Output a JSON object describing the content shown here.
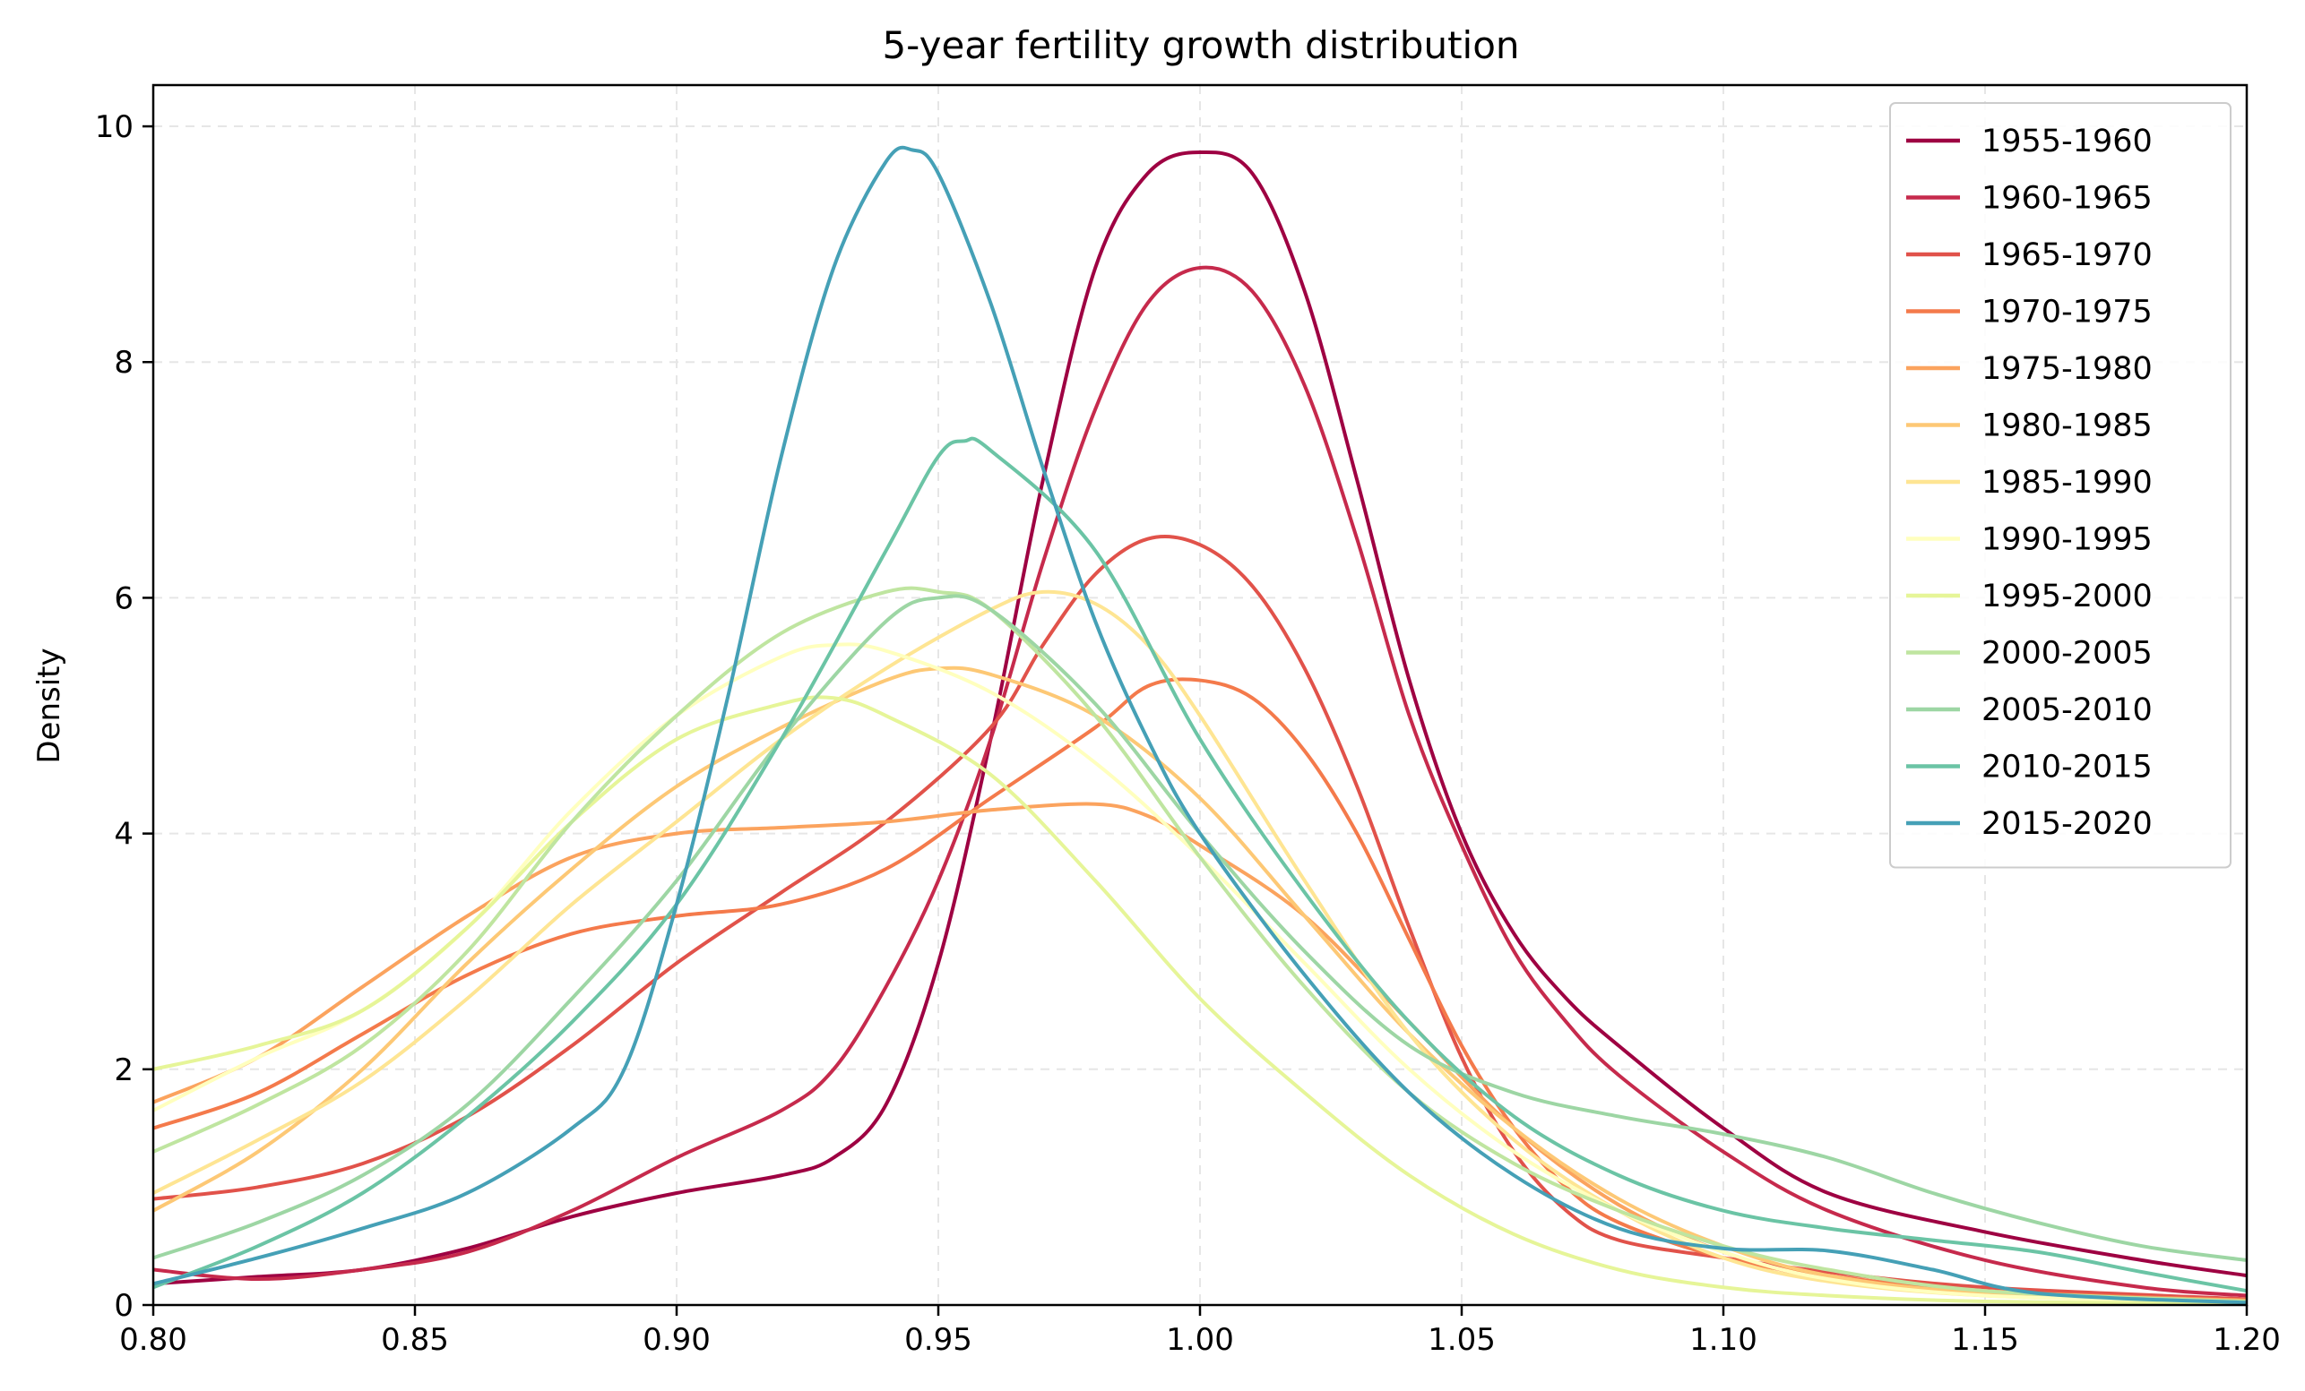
{
  "chart_data": {
    "type": "line",
    "title": "5-year fertility growth distribution",
    "xlabel": "",
    "ylabel": "Density",
    "xlim": [
      0.8,
      1.2
    ],
    "ylim": [
      0,
      10.35
    ],
    "x_ticks": [
      "0.80",
      "0.85",
      "0.90",
      "0.95",
      "1.00",
      "1.05",
      "1.10",
      "1.15",
      "1.20"
    ],
    "y_ticks": [
      "0",
      "2",
      "4",
      "6",
      "8",
      "10"
    ],
    "grid": true,
    "legend_position": "top-right",
    "series": [
      {
        "name": "1955-1960",
        "color": "#9e0142",
        "points": [
          [
            0.8,
            0.18
          ],
          [
            0.82,
            0.24
          ],
          [
            0.84,
            0.3
          ],
          [
            0.86,
            0.48
          ],
          [
            0.88,
            0.75
          ],
          [
            0.9,
            0.95
          ],
          [
            0.92,
            1.1
          ],
          [
            0.93,
            1.25
          ],
          [
            0.94,
            1.7
          ],
          [
            0.95,
            2.9
          ],
          [
            0.96,
            4.8
          ],
          [
            0.97,
            7.0
          ],
          [
            0.98,
            8.8
          ],
          [
            0.99,
            9.6
          ],
          [
            1.0,
            9.78
          ],
          [
            1.01,
            9.6
          ],
          [
            1.02,
            8.6
          ],
          [
            1.03,
            7.0
          ],
          [
            1.04,
            5.3
          ],
          [
            1.05,
            4.0
          ],
          [
            1.06,
            3.15
          ],
          [
            1.07,
            2.6
          ],
          [
            1.08,
            2.2
          ],
          [
            1.1,
            1.5
          ],
          [
            1.12,
            0.95
          ],
          [
            1.15,
            0.62
          ],
          [
            1.18,
            0.38
          ],
          [
            1.2,
            0.25
          ]
        ]
      },
      {
        "name": "1960-1965",
        "color": "#c62a4c",
        "points": [
          [
            0.8,
            0.3
          ],
          [
            0.82,
            0.22
          ],
          [
            0.84,
            0.3
          ],
          [
            0.86,
            0.45
          ],
          [
            0.88,
            0.8
          ],
          [
            0.9,
            1.25
          ],
          [
            0.92,
            1.65
          ],
          [
            0.93,
            2.0
          ],
          [
            0.94,
            2.7
          ],
          [
            0.95,
            3.6
          ],
          [
            0.96,
            4.8
          ],
          [
            0.97,
            6.3
          ],
          [
            0.98,
            7.6
          ],
          [
            0.99,
            8.5
          ],
          [
            1.0,
            8.8
          ],
          [
            1.01,
            8.6
          ],
          [
            1.02,
            7.8
          ],
          [
            1.03,
            6.5
          ],
          [
            1.04,
            5.0
          ],
          [
            1.05,
            3.9
          ],
          [
            1.06,
            3.0
          ],
          [
            1.07,
            2.4
          ],
          [
            1.08,
            1.95
          ],
          [
            1.1,
            1.3
          ],
          [
            1.12,
            0.8
          ],
          [
            1.15,
            0.38
          ],
          [
            1.18,
            0.15
          ],
          [
            1.2,
            0.08
          ]
        ]
      },
      {
        "name": "1965-1970",
        "color": "#e1524a",
        "points": [
          [
            0.8,
            0.9
          ],
          [
            0.82,
            1.0
          ],
          [
            0.84,
            1.2
          ],
          [
            0.86,
            1.6
          ],
          [
            0.88,
            2.2
          ],
          [
            0.9,
            2.9
          ],
          [
            0.92,
            3.5
          ],
          [
            0.94,
            4.1
          ],
          [
            0.96,
            4.9
          ],
          [
            0.97,
            5.6
          ],
          [
            0.98,
            6.2
          ],
          [
            0.99,
            6.5
          ],
          [
            1.0,
            6.45
          ],
          [
            1.01,
            6.1
          ],
          [
            1.02,
            5.4
          ],
          [
            1.03,
            4.4
          ],
          [
            1.04,
            3.2
          ],
          [
            1.05,
            2.1
          ],
          [
            1.06,
            1.3
          ],
          [
            1.07,
            0.8
          ],
          [
            1.08,
            0.55
          ],
          [
            1.1,
            0.4
          ],
          [
            1.12,
            0.28
          ],
          [
            1.15,
            0.15
          ],
          [
            1.2,
            0.05
          ]
        ]
      },
      {
        "name": "1970-1975",
        "color": "#f47a4b",
        "points": [
          [
            0.8,
            1.5
          ],
          [
            0.82,
            1.8
          ],
          [
            0.84,
            2.3
          ],
          [
            0.86,
            2.8
          ],
          [
            0.88,
            3.15
          ],
          [
            0.9,
            3.3
          ],
          [
            0.92,
            3.4
          ],
          [
            0.94,
            3.7
          ],
          [
            0.96,
            4.3
          ],
          [
            0.98,
            4.9
          ],
          [
            0.99,
            5.25
          ],
          [
            1.0,
            5.3
          ],
          [
            1.01,
            5.15
          ],
          [
            1.02,
            4.7
          ],
          [
            1.03,
            4.0
          ],
          [
            1.04,
            3.1
          ],
          [
            1.05,
            2.2
          ],
          [
            1.06,
            1.5
          ],
          [
            1.07,
            1.0
          ],
          [
            1.08,
            0.7
          ],
          [
            1.1,
            0.4
          ],
          [
            1.12,
            0.25
          ],
          [
            1.15,
            0.12
          ],
          [
            1.2,
            0.04
          ]
        ]
      },
      {
        "name": "1975-1980",
        "color": "#fba35e",
        "points": [
          [
            0.8,
            1.72
          ],
          [
            0.82,
            2.1
          ],
          [
            0.84,
            2.7
          ],
          [
            0.86,
            3.3
          ],
          [
            0.88,
            3.8
          ],
          [
            0.9,
            4.0
          ],
          [
            0.92,
            4.05
          ],
          [
            0.94,
            4.1
          ],
          [
            0.96,
            4.2
          ],
          [
            0.98,
            4.25
          ],
          [
            0.99,
            4.15
          ],
          [
            1.0,
            3.9
          ],
          [
            1.02,
            3.3
          ],
          [
            1.04,
            2.4
          ],
          [
            1.06,
            1.5
          ],
          [
            1.08,
            0.85
          ],
          [
            1.1,
            0.45
          ],
          [
            1.12,
            0.22
          ],
          [
            1.15,
            0.1
          ],
          [
            1.2,
            0.04
          ]
        ]
      },
      {
        "name": "1980-1985",
        "color": "#fdc875",
        "points": [
          [
            0.8,
            0.8
          ],
          [
            0.82,
            1.3
          ],
          [
            0.84,
            2.0
          ],
          [
            0.86,
            2.9
          ],
          [
            0.88,
            3.7
          ],
          [
            0.9,
            4.4
          ],
          [
            0.92,
            4.9
          ],
          [
            0.94,
            5.3
          ],
          [
            0.95,
            5.4
          ],
          [
            0.96,
            5.35
          ],
          [
            0.98,
            5.0
          ],
          [
            1.0,
            4.3
          ],
          [
            1.02,
            3.3
          ],
          [
            1.04,
            2.3
          ],
          [
            1.06,
            1.5
          ],
          [
            1.08,
            0.9
          ],
          [
            1.1,
            0.5
          ],
          [
            1.12,
            0.25
          ],
          [
            1.15,
            0.1
          ],
          [
            1.2,
            0.03
          ]
        ]
      },
      {
        "name": "1985-1990",
        "color": "#fee593",
        "points": [
          [
            0.8,
            0.95
          ],
          [
            0.82,
            1.4
          ],
          [
            0.84,
            1.9
          ],
          [
            0.86,
            2.6
          ],
          [
            0.88,
            3.4
          ],
          [
            0.9,
            4.1
          ],
          [
            0.92,
            4.8
          ],
          [
            0.94,
            5.4
          ],
          [
            0.96,
            5.9
          ],
          [
            0.97,
            6.05
          ],
          [
            0.98,
            5.95
          ],
          [
            0.99,
            5.6
          ],
          [
            1.0,
            5.0
          ],
          [
            1.02,
            3.6
          ],
          [
            1.04,
            2.3
          ],
          [
            1.06,
            1.4
          ],
          [
            1.08,
            0.8
          ],
          [
            1.1,
            0.4
          ],
          [
            1.12,
            0.2
          ],
          [
            1.15,
            0.08
          ],
          [
            1.2,
            0.02
          ]
        ]
      },
      {
        "name": "1990-1995",
        "color": "#ffffbe",
        "points": [
          [
            0.8,
            1.65
          ],
          [
            0.82,
            2.1
          ],
          [
            0.84,
            2.5
          ],
          [
            0.86,
            3.2
          ],
          [
            0.88,
            4.2
          ],
          [
            0.9,
            5.0
          ],
          [
            0.92,
            5.5
          ],
          [
            0.93,
            5.6
          ],
          [
            0.94,
            5.55
          ],
          [
            0.96,
            5.2
          ],
          [
            0.98,
            4.6
          ],
          [
            1.0,
            3.8
          ],
          [
            1.02,
            2.9
          ],
          [
            1.04,
            2.0
          ],
          [
            1.06,
            1.3
          ],
          [
            1.08,
            0.8
          ],
          [
            1.1,
            0.45
          ],
          [
            1.12,
            0.22
          ],
          [
            1.15,
            0.08
          ],
          [
            1.2,
            0.02
          ]
        ]
      },
      {
        "name": "1995-2000",
        "color": "#e6f598",
        "points": [
          [
            0.8,
            2.0
          ],
          [
            0.82,
            2.2
          ],
          [
            0.84,
            2.5
          ],
          [
            0.86,
            3.2
          ],
          [
            0.88,
            4.1
          ],
          [
            0.9,
            4.8
          ],
          [
            0.92,
            5.1
          ],
          [
            0.93,
            5.15
          ],
          [
            0.94,
            5.0
          ],
          [
            0.96,
            4.5
          ],
          [
            0.98,
            3.6
          ],
          [
            1.0,
            2.6
          ],
          [
            1.02,
            1.8
          ],
          [
            1.04,
            1.1
          ],
          [
            1.06,
            0.6
          ],
          [
            1.08,
            0.3
          ],
          [
            1.1,
            0.15
          ],
          [
            1.12,
            0.08
          ],
          [
            1.15,
            0.03
          ],
          [
            1.2,
            0.01
          ]
        ]
      },
      {
        "name": "2000-2005",
        "color": "#bfe5a0",
        "points": [
          [
            0.8,
            1.3
          ],
          [
            0.82,
            1.7
          ],
          [
            0.84,
            2.2
          ],
          [
            0.86,
            3.0
          ],
          [
            0.88,
            4.1
          ],
          [
            0.9,
            5.0
          ],
          [
            0.92,
            5.7
          ],
          [
            0.94,
            6.05
          ],
          [
            0.95,
            6.05
          ],
          [
            0.96,
            5.9
          ],
          [
            0.98,
            5.0
          ],
          [
            1.0,
            3.8
          ],
          [
            1.02,
            2.7
          ],
          [
            1.04,
            1.8
          ],
          [
            1.06,
            1.2
          ],
          [
            1.08,
            0.8
          ],
          [
            1.1,
            0.5
          ],
          [
            1.12,
            0.3
          ],
          [
            1.15,
            0.12
          ],
          [
            1.2,
            0.03
          ]
        ]
      },
      {
        "name": "2005-2010",
        "color": "#9dd6a4",
        "points": [
          [
            0.8,
            0.4
          ],
          [
            0.82,
            0.7
          ],
          [
            0.84,
            1.1
          ],
          [
            0.86,
            1.7
          ],
          [
            0.88,
            2.6
          ],
          [
            0.9,
            3.6
          ],
          [
            0.92,
            4.8
          ],
          [
            0.94,
            5.8
          ],
          [
            0.95,
            6.0
          ],
          [
            0.96,
            5.9
          ],
          [
            0.98,
            5.1
          ],
          [
            1.0,
            4.0
          ],
          [
            1.02,
            3.0
          ],
          [
            1.04,
            2.2
          ],
          [
            1.06,
            1.8
          ],
          [
            1.08,
            1.6
          ],
          [
            1.1,
            1.45
          ],
          [
            1.12,
            1.25
          ],
          [
            1.14,
            0.95
          ],
          [
            1.16,
            0.7
          ],
          [
            1.18,
            0.5
          ],
          [
            1.2,
            0.38
          ]
        ]
      },
      {
        "name": "2010-2015",
        "color": "#6bc4a5",
        "points": [
          [
            0.8,
            0.15
          ],
          [
            0.82,
            0.5
          ],
          [
            0.84,
            0.95
          ],
          [
            0.86,
            1.6
          ],
          [
            0.88,
            2.4
          ],
          [
            0.9,
            3.4
          ],
          [
            0.92,
            4.8
          ],
          [
            0.94,
            6.4
          ],
          [
            0.95,
            7.2
          ],
          [
            0.955,
            7.33
          ],
          [
            0.96,
            7.25
          ],
          [
            0.98,
            6.4
          ],
          [
            1.0,
            4.8
          ],
          [
            1.02,
            3.5
          ],
          [
            1.04,
            2.4
          ],
          [
            1.06,
            1.6
          ],
          [
            1.08,
            1.1
          ],
          [
            1.1,
            0.8
          ],
          [
            1.12,
            0.65
          ],
          [
            1.14,
            0.55
          ],
          [
            1.16,
            0.45
          ],
          [
            1.18,
            0.28
          ],
          [
            1.2,
            0.12
          ]
        ]
      },
      {
        "name": "2015-2020",
        "color": "#45a0b6",
        "points": [
          [
            0.8,
            0.18
          ],
          [
            0.82,
            0.4
          ],
          [
            0.84,
            0.65
          ],
          [
            0.86,
            0.95
          ],
          [
            0.88,
            1.5
          ],
          [
            0.89,
            2.0
          ],
          [
            0.9,
            3.4
          ],
          [
            0.91,
            5.2
          ],
          [
            0.92,
            7.2
          ],
          [
            0.93,
            8.8
          ],
          [
            0.94,
            9.7
          ],
          [
            0.945,
            9.8
          ],
          [
            0.95,
            9.6
          ],
          [
            0.96,
            8.5
          ],
          [
            0.97,
            7.1
          ],
          [
            0.98,
            5.8
          ],
          [
            0.99,
            4.8
          ],
          [
            1.0,
            4.0
          ],
          [
            1.02,
            2.8
          ],
          [
            1.04,
            1.8
          ],
          [
            1.06,
            1.1
          ],
          [
            1.08,
            0.65
          ],
          [
            1.1,
            0.48
          ],
          [
            1.12,
            0.46
          ],
          [
            1.14,
            0.3
          ],
          [
            1.16,
            0.1
          ],
          [
            1.2,
            0.02
          ]
        ]
      }
    ]
  }
}
